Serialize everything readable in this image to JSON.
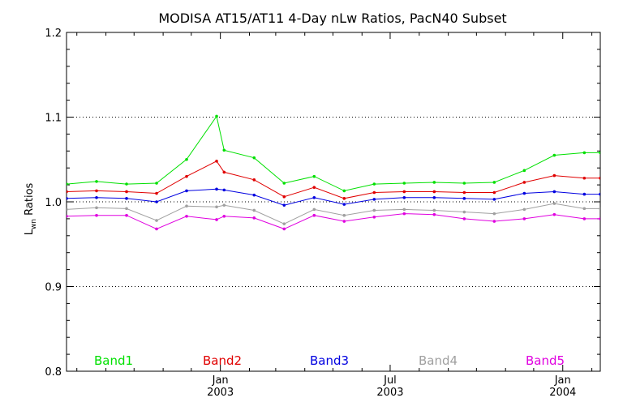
{
  "chart_data": {
    "type": "line",
    "title": "MODISA AT15/AT11 4-Day nLw Ratios, PacN40 Subset",
    "ylabel": {
      "main": "L",
      "sub": "wn",
      "rest": " Ratios"
    },
    "xlabel": "",
    "ylim": [
      0.8,
      1.2
    ],
    "yticks": [
      "0.8",
      "0.9",
      "1.0",
      "1.1",
      "1.2"
    ],
    "ygrid": [
      0.9,
      1.0,
      1.1
    ],
    "xlim": [
      "2002-07-21",
      "2004-02-10"
    ],
    "xticks": [
      {
        "date": "2003-01-01",
        "line1": "Jan",
        "line2": "2003"
      },
      {
        "date": "2003-07-01",
        "line1": "Jul",
        "line2": "2003"
      },
      {
        "date": "2004-01-01",
        "line1": "Jan",
        "line2": "2004"
      }
    ],
    "x": [
      "2002-07-21",
      "2002-08-22",
      "2002-09-23",
      "2002-10-25",
      "2002-11-26",
      "2002-12-28",
      "2003-01-05",
      "2003-02-06",
      "2003-03-10",
      "2003-04-11",
      "2003-05-13",
      "2003-06-14",
      "2003-07-16",
      "2003-08-17",
      "2003-09-18",
      "2003-10-20",
      "2003-11-21",
      "2003-12-23",
      "2004-01-24",
      "2004-02-10"
    ],
    "series": [
      {
        "name": "Band1",
        "color": "#00e000",
        "values": [
          1.021,
          1.024,
          1.021,
          1.022,
          1.05,
          1.101,
          1.061,
          1.052,
          1.022,
          1.03,
          1.013,
          1.021,
          1.022,
          1.023,
          1.022,
          1.023,
          1.037,
          1.055,
          1.058,
          1.058
        ]
      },
      {
        "name": "Band2",
        "color": "#e00000",
        "values": [
          1.012,
          1.013,
          1.012,
          1.01,
          1.03,
          1.048,
          1.035,
          1.026,
          1.006,
          1.017,
          1.004,
          1.011,
          1.012,
          1.012,
          1.011,
          1.011,
          1.023,
          1.031,
          1.028,
          1.028
        ]
      },
      {
        "name": "Band3",
        "color": "#0000e0",
        "values": [
          1.004,
          1.005,
          1.004,
          1.0,
          1.013,
          1.015,
          1.014,
          1.008,
          0.996,
          1.005,
          0.997,
          1.003,
          1.005,
          1.005,
          1.004,
          1.003,
          1.01,
          1.012,
          1.009,
          1.009
        ]
      },
      {
        "name": "Band4",
        "color": "#a0a0a0",
        "values": [
          0.991,
          0.993,
          0.992,
          0.978,
          0.995,
          0.994,
          0.996,
          0.99,
          0.974,
          0.991,
          0.984,
          0.99,
          0.991,
          0.99,
          0.988,
          0.986,
          0.991,
          0.998,
          0.992,
          0.992
        ]
      },
      {
        "name": "Band5",
        "color": "#e000e0",
        "values": [
          0.983,
          0.984,
          0.984,
          0.968,
          0.983,
          0.979,
          0.983,
          0.981,
          0.968,
          0.984,
          0.977,
          0.982,
          0.986,
          0.985,
          0.98,
          0.977,
          0.98,
          0.985,
          0.98,
          0.98
        ]
      }
    ],
    "grid": true,
    "legend": "bottom"
  }
}
